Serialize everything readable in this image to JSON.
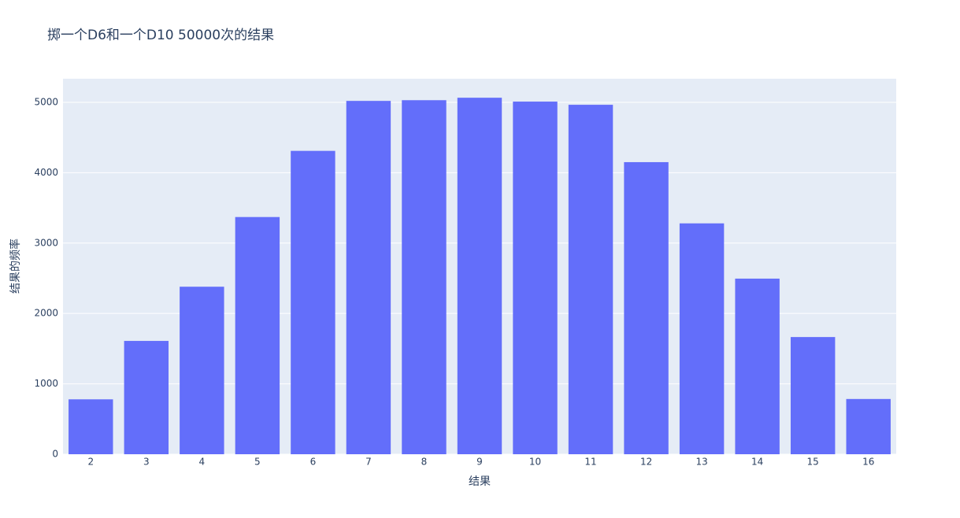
{
  "chart_data": {
    "type": "bar",
    "title": "掷一个D6和一个D10 50000次的结果",
    "x_label": "结果",
    "y_label": "结果的频率",
    "x": [
      2,
      3,
      4,
      5,
      6,
      7,
      8,
      9,
      10,
      11,
      12,
      13,
      14,
      15,
      16
    ],
    "values": [
      780,
      1610,
      2380,
      3370,
      4310,
      5020,
      5030,
      5065,
      5010,
      4965,
      4150,
      3280,
      2495,
      1665,
      785
    ],
    "color": "#636efa",
    "xlim": [
      1.5,
      16.5
    ],
    "xticks": [
      2,
      3,
      4,
      5,
      6,
      7,
      8,
      9,
      10,
      11,
      12,
      13,
      14,
      15,
      16
    ],
    "ylim": [
      0,
      5335
    ],
    "yticks": [
      0,
      1000,
      2000,
      3000,
      4000,
      5000
    ],
    "grid": true
  }
}
